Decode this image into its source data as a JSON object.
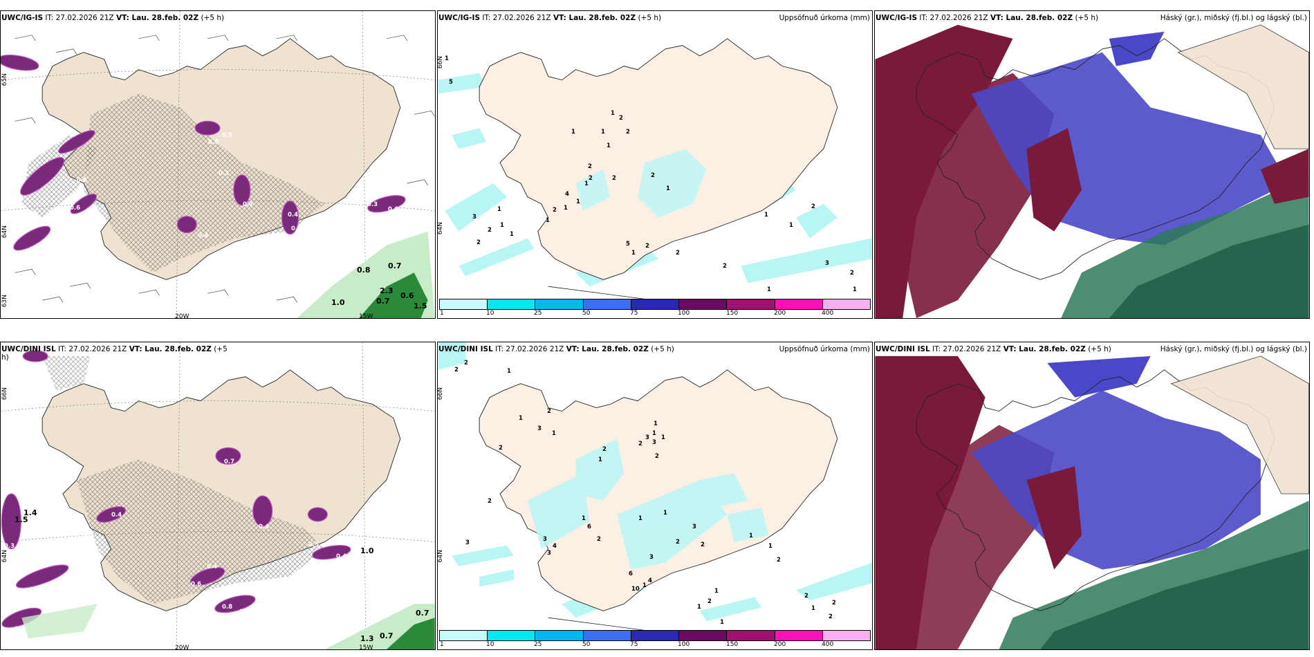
{
  "panels": [
    {
      "id": "p1",
      "title_model": "UWC/IG-IS",
      "title_it": "IT: 27.02.2026 21Z",
      "title_vt": "VT: Lau. 28.feb. 02Z",
      "title_lead": "(+5 h)",
      "right_label": "",
      "lat_labels": [
        "65N",
        "64N",
        "63N"
      ],
      "lon_labels": [
        "20W",
        "15W"
      ],
      "cloud_values": [
        "0.3",
        "0.5",
        "0.8",
        "0.6",
        "0.5",
        "0.7",
        "0.4",
        "0.3",
        "0.6",
        "0.5",
        "0.4",
        "0.3",
        "0.6",
        "0.3",
        "0.4",
        "0.5",
        "0.5"
      ],
      "extra_values": [
        "0.8",
        "0.7",
        "1.0",
        "0.7",
        "2.3",
        "0.6",
        "1.5"
      ]
    },
    {
      "id": "p2",
      "title_model": "UWC/IG-IS",
      "title_it": "IT: 27.02.2026 21Z",
      "title_vt": "VT: Lau. 28.feb. 02Z",
      "title_lead": "(+5 h)",
      "right_label": "Uppsöfnuð úrkoma (mm)",
      "lat_labels": [
        "66N",
        "64N"
      ],
      "precip_values": [
        "1",
        "5",
        "1",
        "2",
        "1",
        "2",
        "1",
        "1",
        "2",
        "2",
        "4",
        "1",
        "2",
        "2",
        "1",
        "1",
        "3",
        "1",
        "2",
        "1",
        "2",
        "1",
        "1",
        "2",
        "1",
        "5",
        "2",
        "2",
        "1",
        "2",
        "1",
        "1",
        "2",
        "3",
        "1",
        "2",
        "1"
      ],
      "colorbar": {
        "labels": [
          "1",
          "10",
          "25",
          "50",
          "75",
          "100",
          "150",
          "200",
          "400"
        ],
        "colors": [
          "#c8fbfb",
          "#00e8f0",
          "#00b8f0",
          "#3a6ff0",
          "#2a2ab0",
          "#6a0a60",
          "#a0106e",
          "#ff10b8",
          "#f8b0f0"
        ]
      }
    },
    {
      "id": "p3",
      "title_model": "UWC/IG-IS",
      "title_it": "IT: 27.02.2026 21Z",
      "title_vt": "VT: Lau. 28.feb. 02Z",
      "title_lead": "(+5 h)",
      "right_label": "Háský (gr.), miðský (fj.bl.) og lágský (bl.)"
    },
    {
      "id": "p4",
      "title_model": "UWC/DINI ISL",
      "title_it": "IT: 27.02.2026 21Z",
      "title_vt": "VT: Lau. 28.feb. 02Z",
      "title_lead": "(+5",
      "title_lead2": "h)",
      "right_label": "",
      "lat_labels": [
        "66N",
        "64N"
      ],
      "lon_labels": [
        "20W",
        "15W"
      ],
      "cloud_values": [
        "1.4",
        "1.5",
        "0.3",
        "0.5",
        "0.4",
        "0.7",
        "0.4",
        "0.4",
        "0.5",
        "0.4",
        "0.8",
        "0.6",
        "0.3",
        "0.6",
        "0.5"
      ],
      "extra_values": [
        "1.0",
        "0.7",
        "0.7",
        "1.3"
      ]
    },
    {
      "id": "p5",
      "title_model": "UWC/DINI ISL",
      "title_it": "IT: 27.02.2026 21Z",
      "title_vt": "VT: Lau. 28.feb. 02Z",
      "title_lead": "(+5 h)",
      "right_label": "Uppsöfnuð úrkoma (mm)",
      "lat_labels": [
        "66N",
        "64N"
      ],
      "precip_values": [
        "2",
        "2",
        "1",
        "1",
        "2",
        "3",
        "1",
        "1",
        "2",
        "2",
        "1",
        "3",
        "3",
        "1",
        "2",
        "1",
        "2",
        "2",
        "3",
        "6",
        "3",
        "4",
        "3",
        "1",
        "2",
        "1",
        "1",
        "3",
        "2",
        "6",
        "10",
        "1",
        "4",
        "2",
        "3",
        "1",
        "1",
        "2",
        "1",
        "2",
        "1",
        "2",
        "2",
        "1",
        "2",
        "1"
      ],
      "colorbar": {
        "labels": [
          "1",
          "10",
          "25",
          "50",
          "75",
          "100",
          "150",
          "200",
          "400"
        ],
        "colors": [
          "#c8fbfb",
          "#00e8f0",
          "#00b8f0",
          "#3a6ff0",
          "#2a2ab0",
          "#6a0a60",
          "#a0106e",
          "#ff10b8",
          "#f8b0f0"
        ]
      }
    },
    {
      "id": "p6",
      "title_model": "UWC/DINI ISL",
      "title_it": "IT: 27.02.2026 21Z",
      "title_vt": "VT: Lau. 28.feb. 02Z",
      "title_lead": "(+5 h)",
      "right_label": "Háský (gr.), miðský (fj.bl.) og lágský (bl.)"
    }
  ],
  "colors": {
    "land": "#f8ece0",
    "land_dark": "#e8d6c2",
    "precip_light": "#b8f6f6",
    "cloud_purple": "#6a2a6a",
    "cloud_magenta": "#c040c0",
    "high_green": "#2a7a4a",
    "mid_blue": "#4040c0",
    "low_red": "#7a1a3a"
  }
}
